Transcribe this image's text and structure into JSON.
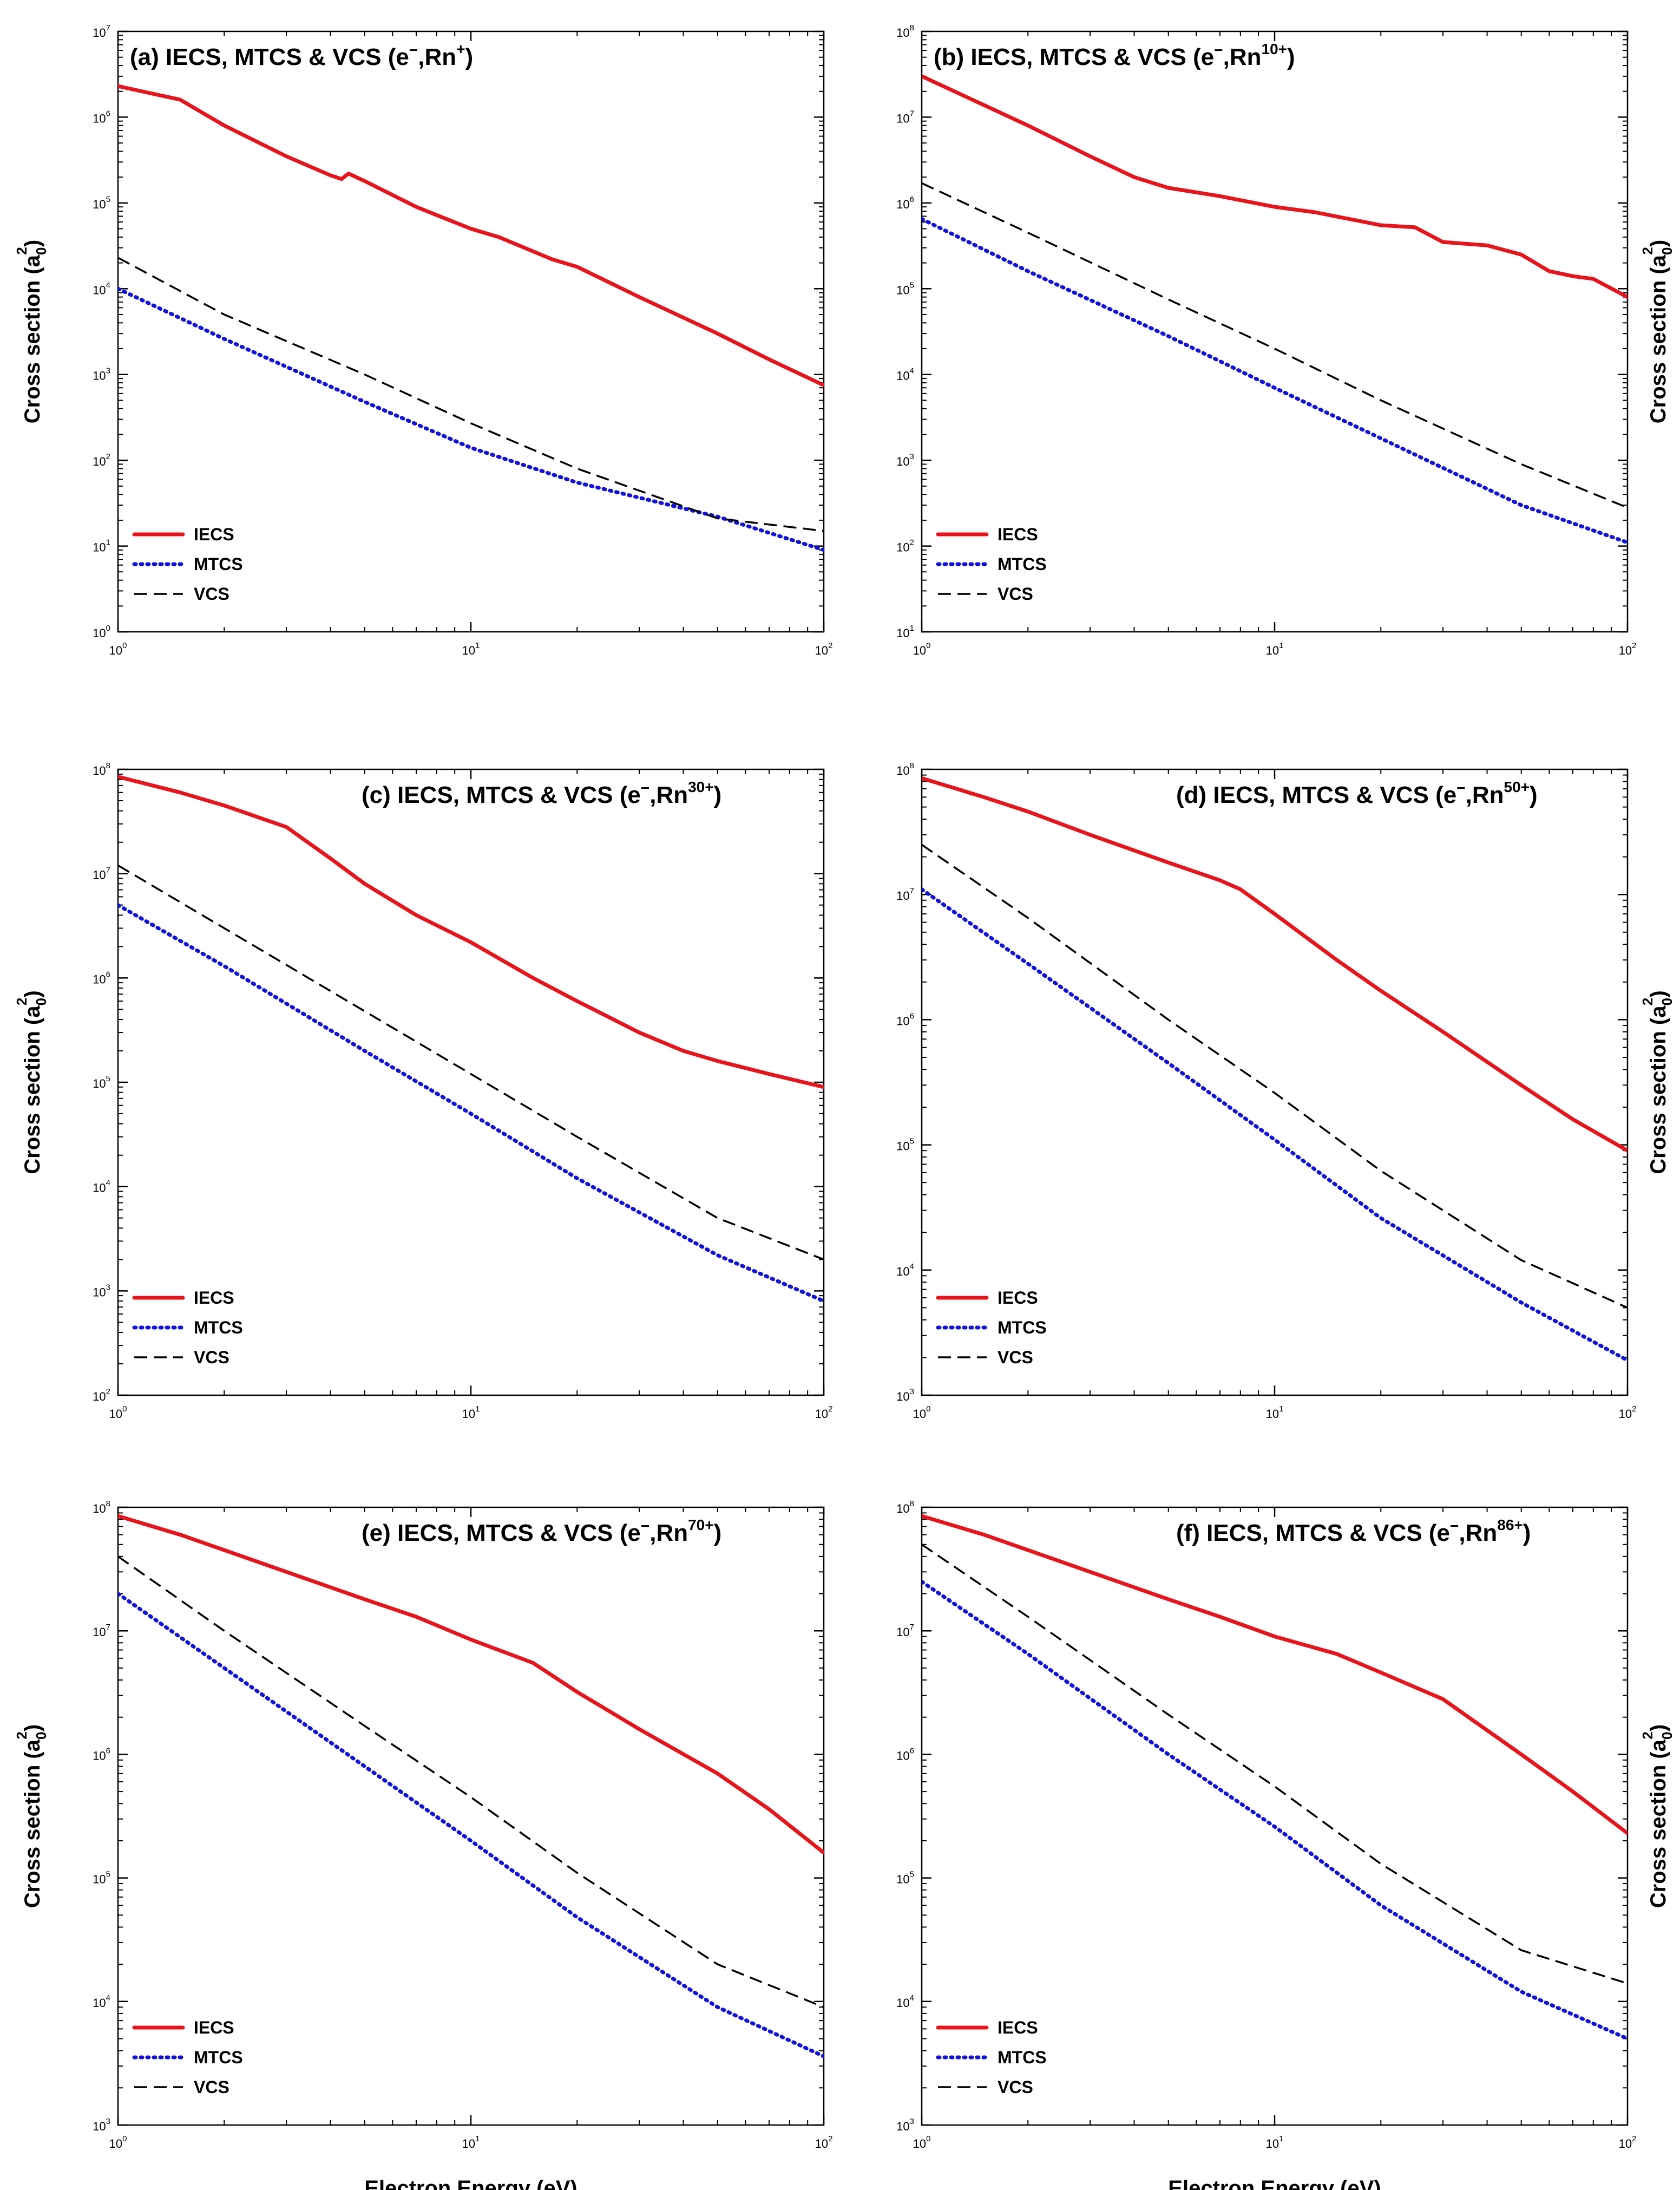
{
  "figure": {
    "xlabel": "Electron Energy (eV)",
    "ylabel": "Cross section (a",
    "ylabel_sub": "0",
    "ylabel_sup": "2",
    "ylabel_end": ")"
  },
  "legend_labels": [
    "IECS",
    "MTCS",
    "VCS"
  ],
  "colors": {
    "IECS": "#e8141b",
    "MTCS": "#1010e0",
    "VCS": "#000000"
  },
  "chart_data": [
    {
      "type": "line",
      "panel": "a",
      "title_prefix": "(a) IECS, MTCS & VCS (e",
      "title_ion": "Rn",
      "title_charge": "+",
      "xscale": "log",
      "yscale": "log",
      "xlim": [
        1,
        100
      ],
      "ylim_exp": [
        0,
        7
      ],
      "xlabel": "",
      "ylabel_side": "left",
      "series": [
        {
          "name": "IECS",
          "x": [
            1,
            1.5,
            2,
            3,
            4,
            4.3,
            4.5,
            5,
            7,
            10,
            12,
            17,
            20,
            30,
            50,
            70,
            100
          ],
          "y": [
            2300000.0,
            1600000.0,
            800000.0,
            350000.0,
            210000.0,
            190000.0,
            220000.0,
            180000.0,
            90000.0,
            50000.0,
            40000.0,
            22000.0,
            18000.0,
            8000.0,
            3000.0,
            1500.0,
            750.0
          ]
        },
        {
          "name": "MTCS",
          "x": [
            1,
            2,
            5,
            10,
            20,
            50,
            100
          ],
          "y": [
            10000.0,
            2600.0,
            480.0,
            140.0,
            55.0,
            22.0,
            9
          ]
        },
        {
          "name": "VCS",
          "x": [
            1,
            2,
            5,
            10,
            20,
            50,
            100
          ],
          "y": [
            23000.0,
            5000.0,
            1000.0,
            270.0,
            80.0,
            21.0,
            15.0
          ]
        }
      ]
    },
    {
      "type": "line",
      "panel": "b",
      "title_prefix": "(b) IECS, MTCS & VCS (e",
      "title_ion": "Rn",
      "title_charge": "10+",
      "xscale": "log",
      "yscale": "log",
      "xlim": [
        1,
        100
      ],
      "ylim_exp": [
        1,
        8
      ],
      "xlabel": "",
      "ylabel_side": "right",
      "series": [
        {
          "name": "IECS",
          "x": [
            1,
            2,
            3,
            4,
            5,
            7,
            10,
            13,
            20,
            25,
            30,
            40,
            50,
            60,
            70,
            80,
            100
          ],
          "y": [
            30000000.0,
            8000000.0,
            3500000.0,
            2000000.0,
            1500000.0,
            1200000.0,
            900000.0,
            780000.0,
            550000.0,
            520000.0,
            350000.0,
            320000.0,
            250000.0,
            160000.0,
            140000.0,
            130000.0,
            80000.0
          ]
        },
        {
          "name": "MTCS",
          "x": [
            1,
            2,
            5,
            10,
            20,
            50,
            100
          ],
          "y": [
            650000.0,
            160000.0,
            28000.0,
            7000.0,
            1800.0,
            300.0,
            110.0
          ]
        },
        {
          "name": "VCS",
          "x": [
            1,
            2,
            5,
            10,
            20,
            50,
            100
          ],
          "y": [
            1700000.0,
            450000.0,
            75000.0,
            20000.0,
            5000.0,
            900.0,
            280.0
          ]
        }
      ]
    },
    {
      "type": "line",
      "panel": "c",
      "title_prefix": "(c) IECS, MTCS & VCS  (e",
      "title_ion": "Rn",
      "title_charge": "30+",
      "xscale": "log",
      "yscale": "log",
      "xlim": [
        1,
        100
      ],
      "ylim_exp": [
        2,
        8
      ],
      "xlabel": "",
      "ylabel_side": "left",
      "series": [
        {
          "name": "IECS",
          "x": [
            1,
            1.5,
            2,
            3,
            4,
            5,
            7,
            10,
            15,
            20,
            30,
            40,
            50,
            70,
            100
          ],
          "y": [
            85000000.0,
            60000000.0,
            45000000.0,
            28000000.0,
            14000000.0,
            8000000.0,
            4000000.0,
            2200000.0,
            1000000.0,
            600000.0,
            300000.0,
            200000.0,
            160000.0,
            120000.0,
            90000.0
          ]
        },
        {
          "name": "MTCS",
          "x": [
            1,
            2,
            5,
            10,
            20,
            50,
            100
          ],
          "y": [
            5000000.0,
            1300000.0,
            200000.0,
            50000.0,
            12000.0,
            2200.0,
            800.0
          ]
        },
        {
          "name": "VCS",
          "x": [
            1,
            2,
            5,
            10,
            20,
            50,
            100
          ],
          "y": [
            12000000.0,
            3000000.0,
            480000.0,
            120000.0,
            30000.0,
            5000.0,
            2000.0
          ]
        }
      ]
    },
    {
      "type": "line",
      "panel": "d",
      "title_prefix": "(d) IECS, MTCS & VCS (e",
      "title_ion": "Rn",
      "title_charge": "50+",
      "xscale": "log",
      "yscale": "log",
      "xlim": [
        1,
        100
      ],
      "ylim_exp": [
        3,
        8
      ],
      "xlabel": "",
      "ylabel_side": "right",
      "series": [
        {
          "name": "IECS",
          "x": [
            1,
            1.5,
            2,
            3,
            5,
            7,
            8,
            10,
            15,
            20,
            30,
            50,
            70,
            100
          ],
          "y": [
            85000000.0,
            60000000.0,
            46000000.0,
            30000000.0,
            18000000.0,
            13000000.0,
            11000000.0,
            7000000.0,
            3000000.0,
            1700000.0,
            800000.0,
            300000.0,
            160000.0,
            90000.0
          ]
        },
        {
          "name": "MTCS",
          "x": [
            1,
            2,
            5,
            10,
            20,
            50,
            100
          ],
          "y": [
            11000000.0,
            2800000.0,
            450000.0,
            110000.0,
            26000.0,
            5500.0,
            1900.0
          ]
        },
        {
          "name": "VCS",
          "x": [
            1,
            2,
            5,
            10,
            20,
            50,
            100
          ],
          "y": [
            25000000.0,
            6500000.0,
            1000000.0,
            260000.0,
            62000.0,
            12000.0,
            5000.0
          ]
        }
      ]
    },
    {
      "type": "line",
      "panel": "e",
      "title_prefix": "(e) IECS, MTCS & VCS (e",
      "title_ion": "Rn",
      "title_charge": "70+",
      "xscale": "log",
      "yscale": "log",
      "xlim": [
        1,
        100
      ],
      "ylim_exp": [
        3,
        8
      ],
      "xlabel": "Electron Energy (eV)",
      "ylabel_side": "left",
      "series": [
        {
          "name": "IECS",
          "x": [
            1,
            1.5,
            2,
            3,
            5,
            7,
            10,
            15,
            20,
            30,
            50,
            70,
            100
          ],
          "y": [
            85000000.0,
            60000000.0,
            45000000.0,
            30000000.0,
            18000000.0,
            13000000.0,
            8500000.0,
            5500000.0,
            3200000.0,
            1600000.0,
            700000.0,
            360000.0,
            160000.0
          ]
        },
        {
          "name": "MTCS",
          "x": [
            1,
            2,
            5,
            10,
            20,
            50,
            100
          ],
          "y": [
            20000000.0,
            5000000.0,
            800000.0,
            200000.0,
            48000.0,
            9000.0,
            3600.0
          ]
        },
        {
          "name": "VCS",
          "x": [
            1,
            2,
            5,
            10,
            20,
            50,
            100
          ],
          "y": [
            40000000.0,
            10000000.0,
            1700000.0,
            450000.0,
            110000.0,
            20000.0,
            9000.0
          ]
        }
      ]
    },
    {
      "type": "line",
      "panel": "f",
      "title_prefix": "(f) IECS, MTCS & VCS (e",
      "title_ion": "Rn",
      "title_charge": "86+",
      "xscale": "log",
      "yscale": "log",
      "xlim": [
        1,
        100
      ],
      "ylim_exp": [
        3,
        8
      ],
      "xlabel": "Electron Energy (eV)",
      "ylabel_side": "right",
      "series": [
        {
          "name": "IECS",
          "x": [
            1,
            1.5,
            2,
            3,
            5,
            7,
            10,
            15,
            20,
            30,
            50,
            70,
            100
          ],
          "y": [
            85000000.0,
            60000000.0,
            45000000.0,
            30000000.0,
            18000000.0,
            13000000.0,
            9000000.0,
            6500000.0,
            4600000.0,
            2800000.0,
            1000000.0,
            500000.0,
            230000.0
          ]
        },
        {
          "name": "MTCS",
          "x": [
            1,
            2,
            5,
            10,
            20,
            50,
            100
          ],
          "y": [
            25000000.0,
            6500000.0,
            1000000.0,
            260000.0,
            60000.0,
            12000.0,
            5000.0
          ]
        },
        {
          "name": "VCS",
          "x": [
            1,
            2,
            5,
            10,
            20,
            50,
            100
          ],
          "y": [
            50000000.0,
            13000000.0,
            2100000.0,
            550000.0,
            130000.0,
            26000.0,
            14000.0
          ]
        }
      ]
    }
  ]
}
